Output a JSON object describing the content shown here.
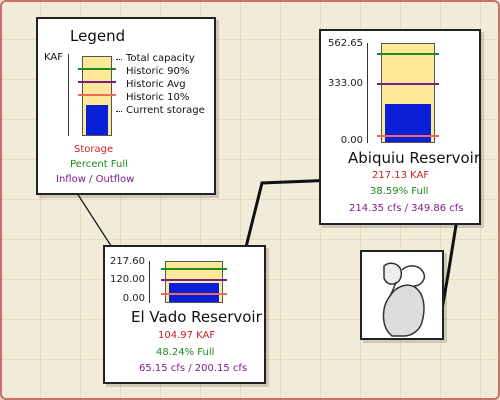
{
  "legend": {
    "title": "Legend",
    "unit": "KAF",
    "items": [
      {
        "label": "Total capacity",
        "swatch": "dotted-black"
      },
      {
        "label": "Historic 90%",
        "color": "#1e8c1e"
      },
      {
        "label": "Historic Avg",
        "color": "#7a1e8c"
      },
      {
        "label": "Historic 10%",
        "color": "#f06a5a"
      },
      {
        "label": "Current storage",
        "swatch": "dotted-black"
      }
    ],
    "storage_label": "Storage",
    "percent_label": "Percent Full",
    "flow_label": "Inflow / Outflow"
  },
  "colors": {
    "storage_text": "#d02020",
    "percent_text": "#1e8c1e",
    "flow_text": "#7a1e8c",
    "capacity_fill": "#fde998",
    "storage_fill": "#0a1fd8",
    "h90": "#1e8c1e",
    "havg": "#7a1e8c",
    "h10": "#f06a5a"
  },
  "reservoirs": [
    {
      "id": "abiquiu",
      "name": "Abiquiu Reservoir",
      "ticks": [
        "562.65",
        "333.00",
        "0.00"
      ],
      "storage": "217.13 KAF",
      "percent": "38.59% Full",
      "flow": "214.35 cfs / 349.86 cfs",
      "levels": {
        "capacity": 562.65,
        "current": 217.13,
        "h90": 500,
        "havg": 333,
        "h10": 40
      }
    },
    {
      "id": "elvado",
      "name": "El Vado Reservoir",
      "ticks": [
        "217.60",
        "120.00",
        "0.00"
      ],
      "storage": "104.97 KAF",
      "percent": "48.24% Full",
      "flow": "65.15 cfs / 200.15 cfs",
      "levels": {
        "capacity": 217.6,
        "current": 104.97,
        "h90": 175,
        "havg": 120,
        "h10": 45
      }
    }
  ]
}
